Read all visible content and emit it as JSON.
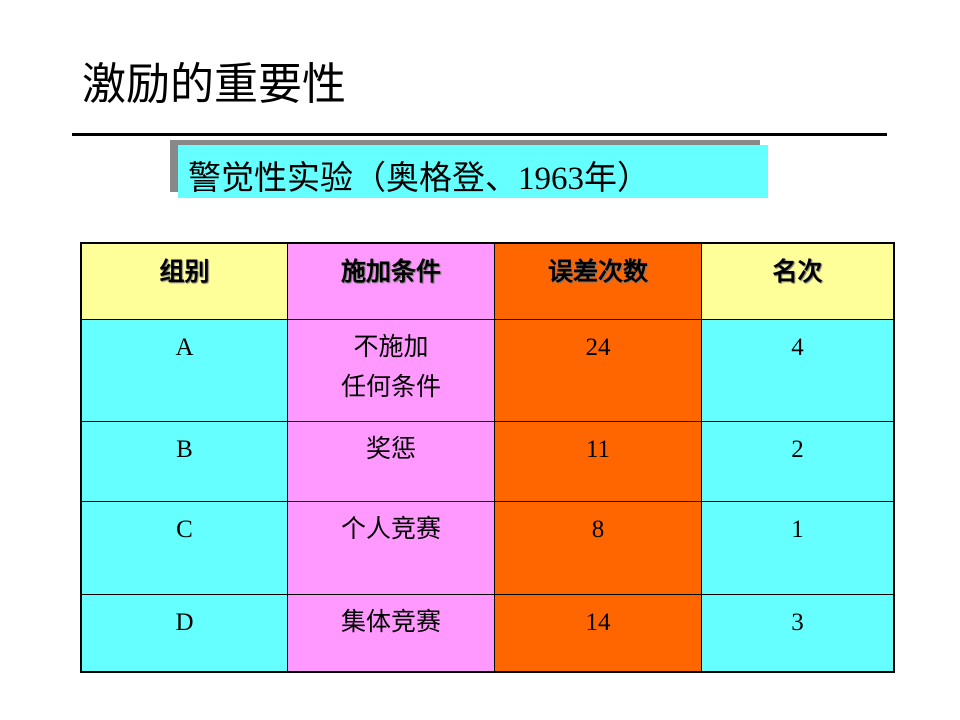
{
  "title": "激励的重要性",
  "subtitle": "警觉性实验（奥格登、1963年）",
  "colors": {
    "cyan": "#66ffff",
    "pink": "#ff99ff",
    "orange": "#ff6600",
    "yellow": "#ffff99"
  },
  "table": {
    "headers": [
      "组别",
      "施加条件",
      "误差次数",
      "名次"
    ],
    "rows": [
      {
        "group": "A",
        "condition_line1": "不施加",
        "condition_line2": "任何条件",
        "errors": "24",
        "rank": "4"
      },
      {
        "group": "B",
        "condition_line1": "奖惩",
        "condition_line2": "",
        "errors": "11",
        "rank": "2"
      },
      {
        "group": "C",
        "condition_line1": "个人竞赛",
        "condition_line2": "",
        "errors": "8",
        "rank": "1"
      },
      {
        "group": "D",
        "condition_line1": "集体竞赛",
        "condition_line2": "",
        "errors": "14",
        "rank": "3"
      }
    ]
  }
}
